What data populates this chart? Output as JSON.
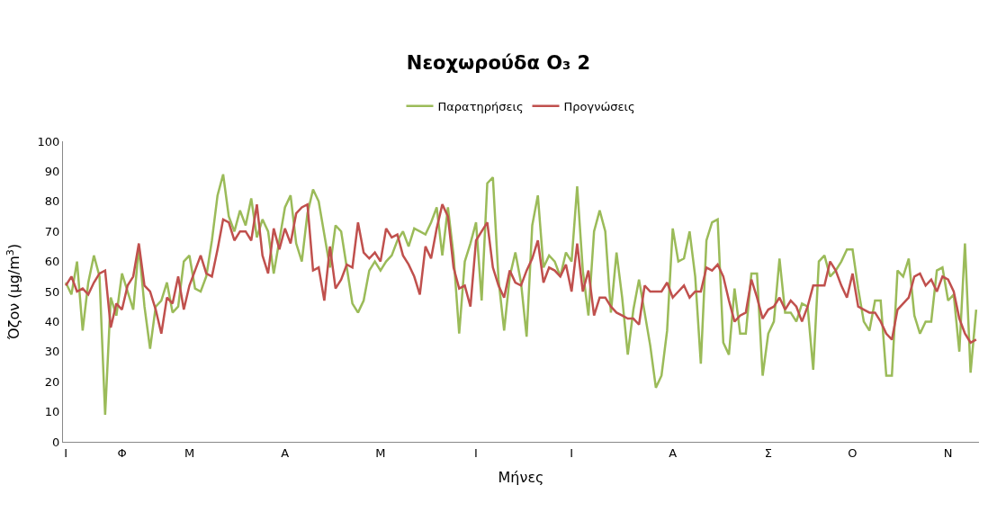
{
  "chart_data": {
    "type": "line",
    "title": "Νεοχωρούδα O₃ 2",
    "xlabel": "Μήνες",
    "ylabel": "Όζον (μg/m$^{3}$)",
    "categories": [
      "Ι",
      null,
      null,
      null,
      null,
      null,
      null,
      null,
      null,
      null,
      "Φ",
      null,
      null,
      null,
      null,
      null,
      null,
      null,
      null,
      null,
      null,
      null,
      "Μ",
      null,
      null,
      null,
      null,
      null,
      null,
      null,
      null,
      null,
      null,
      null,
      null,
      null,
      null,
      null,
      null,
      "Α",
      null,
      null,
      null,
      null,
      null,
      null,
      null,
      null,
      null,
      null,
      null,
      null,
      null,
      null,
      null,
      null,
      "Μ",
      null,
      null,
      null,
      null,
      null,
      null,
      null,
      null,
      null,
      null,
      null,
      null,
      null,
      null,
      null,
      null,
      "Ι",
      null,
      null,
      null,
      null,
      null,
      null,
      null,
      null,
      null,
      null,
      null,
      null,
      null,
      null,
      null,
      null,
      "Ι",
      null,
      null,
      null,
      null,
      null,
      null,
      null,
      null,
      null,
      null,
      null,
      null,
      null,
      null,
      null,
      null,
      null,
      "Α",
      null,
      null,
      null,
      null,
      null,
      null,
      null,
      null,
      null,
      null,
      null,
      null,
      null,
      null,
      null,
      null,
      "Σ",
      null,
      null,
      null,
      null,
      null,
      null,
      null,
      null,
      null,
      null,
      null,
      null,
      null,
      null,
      "Ο",
      null,
      null,
      null,
      null,
      null,
      null,
      null,
      null,
      null,
      null,
      null,
      null,
      null,
      null,
      null,
      null,
      "Ν",
      null,
      null,
      null,
      null,
      null
    ],
    "ylim": [
      0,
      100
    ],
    "yticks": [
      0,
      10,
      20,
      30,
      40,
      50,
      60,
      70,
      80,
      90,
      100
    ],
    "legend": "top",
    "line_style": "solid",
    "marker": "none",
    "series": [
      {
        "name": "Παρατηρήσεις",
        "color": "#9bbb59",
        "values": [
          53,
          49,
          60,
          37,
          53,
          62,
          55,
          9,
          48,
          42,
          56,
          50,
          44,
          65,
          45,
          31,
          45,
          47,
          53,
          43,
          45,
          60,
          62,
          51,
          50,
          55,
          67,
          82,
          89,
          75,
          70,
          77,
          72,
          81,
          68,
          74,
          70,
          56,
          67,
          78,
          82,
          66,
          60,
          76,
          84,
          80,
          69,
          58,
          72,
          70,
          58,
          46,
          43,
          47,
          57,
          60,
          57,
          60,
          62,
          67,
          70,
          65,
          71,
          70,
          69,
          73,
          78,
          62,
          78,
          62,
          36,
          60,
          66,
          73,
          47,
          86,
          88,
          54,
          37,
          55,
          63,
          53,
          35,
          72,
          82,
          58,
          62,
          60,
          55,
          63,
          60,
          85,
          57,
          42,
          70,
          77,
          70,
          43,
          63,
          48,
          29,
          44,
          54,
          43,
          32,
          18,
          22,
          37,
          71,
          60,
          61,
          70,
          55,
          26,
          67,
          73,
          74,
          33,
          29,
          51,
          36,
          36,
          56,
          56,
          22,
          36,
          40,
          61,
          43,
          43,
          40,
          46,
          45,
          24,
          60,
          62,
          55,
          57,
          60,
          64,
          64,
          51,
          40,
          37,
          47,
          47,
          22,
          22,
          57,
          55,
          61,
          42,
          36,
          40,
          40,
          57,
          58,
          47,
          49,
          30,
          66,
          23,
          44
        ]
      },
      {
        "name": "Προγνώσεις",
        "color": "#c0504d",
        "values": [
          52,
          55,
          50,
          51,
          49,
          53,
          56,
          57,
          38,
          46,
          44,
          52,
          55,
          66,
          52,
          50,
          44,
          36,
          48,
          46,
          55,
          44,
          52,
          57,
          62,
          56,
          55,
          64,
          74,
          73,
          67,
          70,
          70,
          67,
          79,
          62,
          56,
          71,
          64,
          71,
          66,
          76,
          78,
          79,
          57,
          58,
          47,
          65,
          51,
          54,
          59,
          58,
          73,
          63,
          61,
          63,
          60,
          71,
          68,
          69,
          62,
          59,
          55,
          49,
          65,
          61,
          71,
          79,
          75,
          58,
          51,
          52,
          45,
          67,
          70,
          73,
          58,
          52,
          48,
          57,
          53,
          52,
          57,
          61,
          67,
          53,
          58,
          57,
          55,
          59,
          50,
          66,
          50,
          57,
          42,
          48,
          48,
          45,
          43,
          42,
          41,
          41,
          39,
          52,
          50,
          50,
          50,
          53,
          48,
          50,
          52,
          48,
          50,
          50,
          58,
          57,
          59,
          55,
          47,
          40,
          42,
          43,
          54,
          48,
          41,
          44,
          45,
          48,
          44,
          47,
          45,
          40,
          45,
          52,
          52,
          52,
          60,
          57,
          52,
          48,
          56,
          45,
          44,
          43,
          43,
          40,
          36,
          34,
          44,
          46,
          48,
          55,
          56,
          52,
          54,
          50,
          55,
          54,
          50,
          41,
          36,
          33,
          34
        ]
      }
    ]
  }
}
